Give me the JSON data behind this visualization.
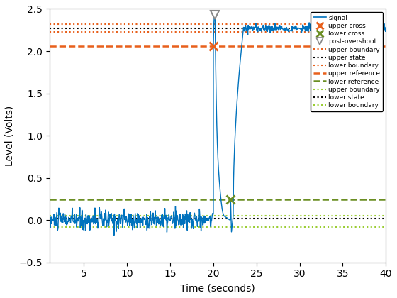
{
  "title": "",
  "xlabel": "Time (seconds)",
  "ylabel": "Level (Volts)",
  "xlim": [
    1,
    40
  ],
  "ylim": [
    -0.5,
    2.5
  ],
  "signal_color": "#0072BD",
  "upper_boundary_orange_color": "#E8601C",
  "upper_state_color": "#000000",
  "lower_state_color": "#000000",
  "upper_ref_color": "#E8601C",
  "lower_ref_color": "#6B8E23",
  "upper_boundary_green_color": "#9ACD32",
  "lower_boundary_green_color": "#9ACD32",
  "upper_cross_color": "#E8601C",
  "lower_cross_color": "#6B8E23",
  "post_overshoot_color": "#888888",
  "upper_boundary_val": 2.32,
  "lower_boundary_val_orange": 2.225,
  "upper_state_val": 2.265,
  "lower_state_val": 0.015,
  "upper_ref_val": 2.06,
  "lower_ref_val": 0.245,
  "upper_boundary_green_val": 0.055,
  "lower_boundary_green_val": -0.085,
  "upper_cross_time": 20.0,
  "upper_cross_level": 2.06,
  "lower_cross_time": 22.0,
  "lower_cross_level": 0.245,
  "post_overshoot_time": 20.2,
  "post_overshoot_level": 2.43,
  "noise_amp_pre": 0.06,
  "noise_amp_post": 0.025,
  "post_step_settle": 2.27
}
